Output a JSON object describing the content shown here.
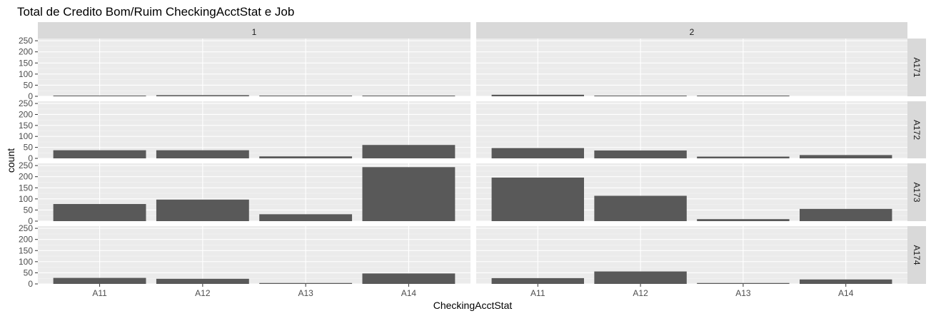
{
  "chart_data": {
    "type": "bar",
    "title": "Total de Credito Bom/Ruim CheckingAcctStat e Job",
    "xlabel": "CheckingAcctStat",
    "ylabel": "count",
    "ylim": [
      0,
      260
    ],
    "yticks": [
      0,
      50,
      100,
      150,
      200,
      250
    ],
    "categories": [
      "A11",
      "A12",
      "A13",
      "A14"
    ],
    "facet_columns": [
      "1",
      "2"
    ],
    "facet_rows": [
      "A171",
      "A172",
      "A173",
      "A174"
    ],
    "grid": true,
    "bar_color": "#595959",
    "panel_background": "#ebebeb",
    "strip_background": "#d9d9d9",
    "panels": [
      {
        "row": "A171",
        "col": "1",
        "values": [
          1,
          5,
          1,
          1
        ]
      },
      {
        "row": "A171",
        "col": "2",
        "values": [
          7,
          1,
          1,
          null
        ]
      },
      {
        "row": "A172",
        "col": "1",
        "values": [
          37,
          37,
          9,
          61
        ]
      },
      {
        "row": "A172",
        "col": "2",
        "values": [
          47,
          36,
          8,
          15
        ]
      },
      {
        "row": "A173",
        "col": "1",
        "values": [
          77,
          97,
          31,
          243
        ]
      },
      {
        "row": "A173",
        "col": "2",
        "values": [
          196,
          114,
          9,
          55
        ]
      },
      {
        "row": "A174",
        "col": "1",
        "values": [
          27,
          23,
          4,
          47
        ]
      },
      {
        "row": "A174",
        "col": "2",
        "values": [
          26,
          56,
          4,
          20
        ]
      }
    ]
  }
}
